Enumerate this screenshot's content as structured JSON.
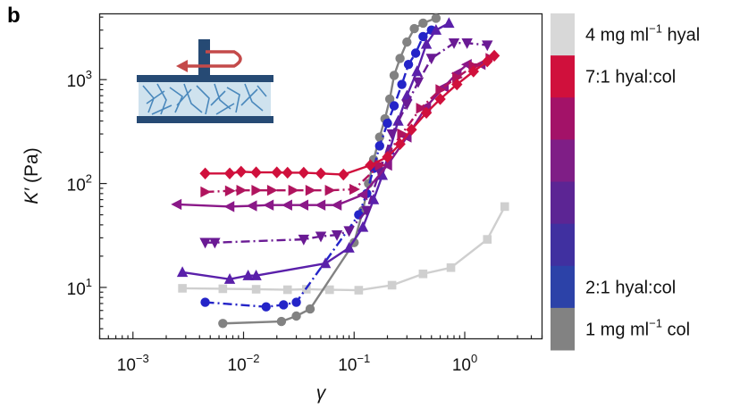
{
  "panel_label": "b",
  "colors": {
    "col": "#828282",
    "2to1": "#2c42a8",
    "3to1": "#4030a0",
    "4to1": "#5c2594",
    "5to1": "#7f1e86",
    "6to1": "#a31268",
    "7to1": "#d0103c",
    "hyal": "#cfcfcf",
    "blue_circles": "#2424c8",
    "schematic_plate": "#264a74",
    "schematic_gel": "#cfe2ee",
    "schematic_fiber": "#4a88bc",
    "schematic_arrow": "#c44a4a"
  },
  "legend": {
    "items": [
      {
        "key": "hyal",
        "color": "#d8d8d8",
        "label_main": "4 mg ml",
        "label_sup": "−1",
        "label_tail": " hyal"
      },
      {
        "key": "7to1",
        "color": "#d0103c",
        "label_main": "7:1 hyal:col",
        "label_sup": "",
        "label_tail": ""
      },
      {
        "key": "6to1",
        "color": "#a31268",
        "label_main": "",
        "label_sup": "",
        "label_tail": ""
      },
      {
        "key": "5to1",
        "color": "#7f1e86",
        "label_main": "",
        "label_sup": "",
        "label_tail": ""
      },
      {
        "key": "4to1",
        "color": "#5c2594",
        "label_main": "",
        "label_sup": "",
        "label_tail": ""
      },
      {
        "key": "3to1",
        "color": "#4030a0",
        "label_main": "",
        "label_sup": "",
        "label_tail": ""
      },
      {
        "key": "2to1",
        "color": "#2c42a8",
        "label_main": "2:1 hyal:col",
        "label_sup": "",
        "label_tail": ""
      },
      {
        "key": "col",
        "color": "#828282",
        "label_main": "1 mg ml",
        "label_sup": "−1",
        "label_tail": " col"
      }
    ]
  },
  "chart_data": {
    "type": "scatter",
    "x_scale": "log",
    "y_scale": "log",
    "xlim": [
      0.0005,
      5
    ],
    "ylim": [
      3.2,
      4300
    ],
    "xlabel": "γ",
    "ylabel_main": "K′",
    "ylabel_unit": " (Pa)",
    "x_ticks": [
      {
        "value": 0.001,
        "base": "10",
        "exp": "−3"
      },
      {
        "value": 0.01,
        "base": "10",
        "exp": "−2"
      },
      {
        "value": 0.1,
        "base": "10",
        "exp": "−1"
      },
      {
        "value": 1,
        "base": "10",
        "exp": "0"
      }
    ],
    "y_ticks": [
      {
        "value": 10,
        "base": "10",
        "exp": "1"
      },
      {
        "value": 100,
        "base": "10",
        "exp": "2"
      },
      {
        "value": 1000,
        "base": "10",
        "exp": "3"
      }
    ],
    "grid": false,
    "legend_placement": "right (color bar)",
    "series": [
      {
        "key": "hyal",
        "marker": "square",
        "color": "#cfcfcf",
        "dash": "solid",
        "x": [
          0.0028,
          0.0065,
          0.013,
          0.025,
          0.037,
          0.06,
          0.11,
          0.22,
          0.42,
          0.75,
          1.6,
          2.3
        ],
        "y": [
          9.8,
          9.7,
          9.6,
          9.5,
          9.6,
          9.5,
          9.4,
          10.5,
          13.5,
          15.5,
          29,
          60
        ]
      },
      {
        "key": "col",
        "marker": "circle",
        "color": "#828282",
        "dash": "solid",
        "x": [
          0.0065,
          0.022,
          0.03,
          0.04,
          0.1,
          0.12,
          0.135,
          0.15,
          0.17,
          0.19,
          0.21,
          0.23,
          0.26,
          0.3,
          0.35,
          0.42,
          0.55
        ],
        "y": [
          4.5,
          4.7,
          5.3,
          6.2,
          27,
          55,
          100,
          170,
          280,
          420,
          650,
          1100,
          1600,
          2300,
          3100,
          3500,
          3900
        ]
      },
      {
        "key": "2to1",
        "marker": "circle",
        "color": "#2424c8",
        "dash": "dashdot",
        "x": [
          0.0045,
          0.016,
          0.023,
          0.03,
          0.11,
          0.13,
          0.15,
          0.17,
          0.2,
          0.23,
          0.27,
          0.31,
          0.36,
          0.42,
          0.5
        ],
        "y": [
          7.2,
          6.5,
          6.8,
          7.2,
          50,
          80,
          140,
          230,
          380,
          560,
          900,
          1400,
          1800,
          2600,
          3000
        ]
      },
      {
        "key": "3to1",
        "marker": "triangle-up",
        "color": "#5a20aa",
        "dash": "solid",
        "x": [
          0.0028,
          0.0075,
          0.011,
          0.013,
          0.055,
          0.09,
          0.12,
          0.15,
          0.18,
          0.21,
          0.25,
          0.3,
          0.37,
          0.45,
          0.55,
          0.72
        ],
        "y": [
          14,
          12,
          13,
          13,
          17,
          24,
          38,
          70,
          120,
          210,
          400,
          700,
          1200,
          2200,
          3000,
          3500
        ]
      },
      {
        "key": "4to1",
        "marker": "triangle-down",
        "color": "#6a1a94",
        "dash": "dashdot",
        "x": [
          0.0045,
          0.0055,
          0.035,
          0.05,
          0.07,
          0.09,
          0.13,
          0.17,
          0.22,
          0.3,
          0.38,
          0.5,
          0.8,
          1.05,
          1.6
        ],
        "y": [
          27,
          27,
          29,
          31,
          32,
          35,
          55,
          130,
          300,
          580,
          950,
          1600,
          2250,
          2250,
          2150
        ]
      },
      {
        "key": "5to1",
        "marker": "triangle-left",
        "color": "#8a1888",
        "dash": "solid",
        "x": [
          0.0025,
          0.0075,
          0.012,
          0.017,
          0.025,
          0.035,
          0.05,
          0.07,
          0.12,
          0.2,
          0.3,
          0.45,
          0.65,
          0.85,
          1.05,
          1.4
        ],
        "y": [
          63,
          60,
          61,
          62,
          62,
          62,
          62,
          62,
          78,
          150,
          280,
          550,
          850,
          1150,
          1400,
          1400
        ]
      },
      {
        "key": "6to1",
        "marker": "triangle-right",
        "color": "#b0145e",
        "dash": "dashdot",
        "x": [
          0.0045,
          0.0075,
          0.0095,
          0.013,
          0.018,
          0.028,
          0.04,
          0.06,
          0.1,
          0.17,
          0.27,
          0.4,
          0.6,
          0.85,
          1.2,
          1.7
        ],
        "y": [
          83,
          85,
          86,
          86,
          86,
          86,
          86,
          86,
          88,
          150,
          300,
          530,
          800,
          1050,
          1350,
          1600
        ]
      },
      {
        "key": "7to1",
        "marker": "diamond",
        "color": "#d0103c",
        "dash": "solid",
        "x": [
          0.0045,
          0.0075,
          0.0095,
          0.013,
          0.02,
          0.025,
          0.035,
          0.05,
          0.08,
          0.14,
          0.2,
          0.26,
          0.33,
          0.45,
          0.6,
          0.85,
          1.2,
          1.6,
          1.85
        ],
        "y": [
          125,
          125,
          130,
          128,
          128,
          127,
          127,
          125,
          122,
          150,
          180,
          240,
          330,
          480,
          650,
          900,
          1200,
          1500,
          1700
        ]
      }
    ]
  }
}
